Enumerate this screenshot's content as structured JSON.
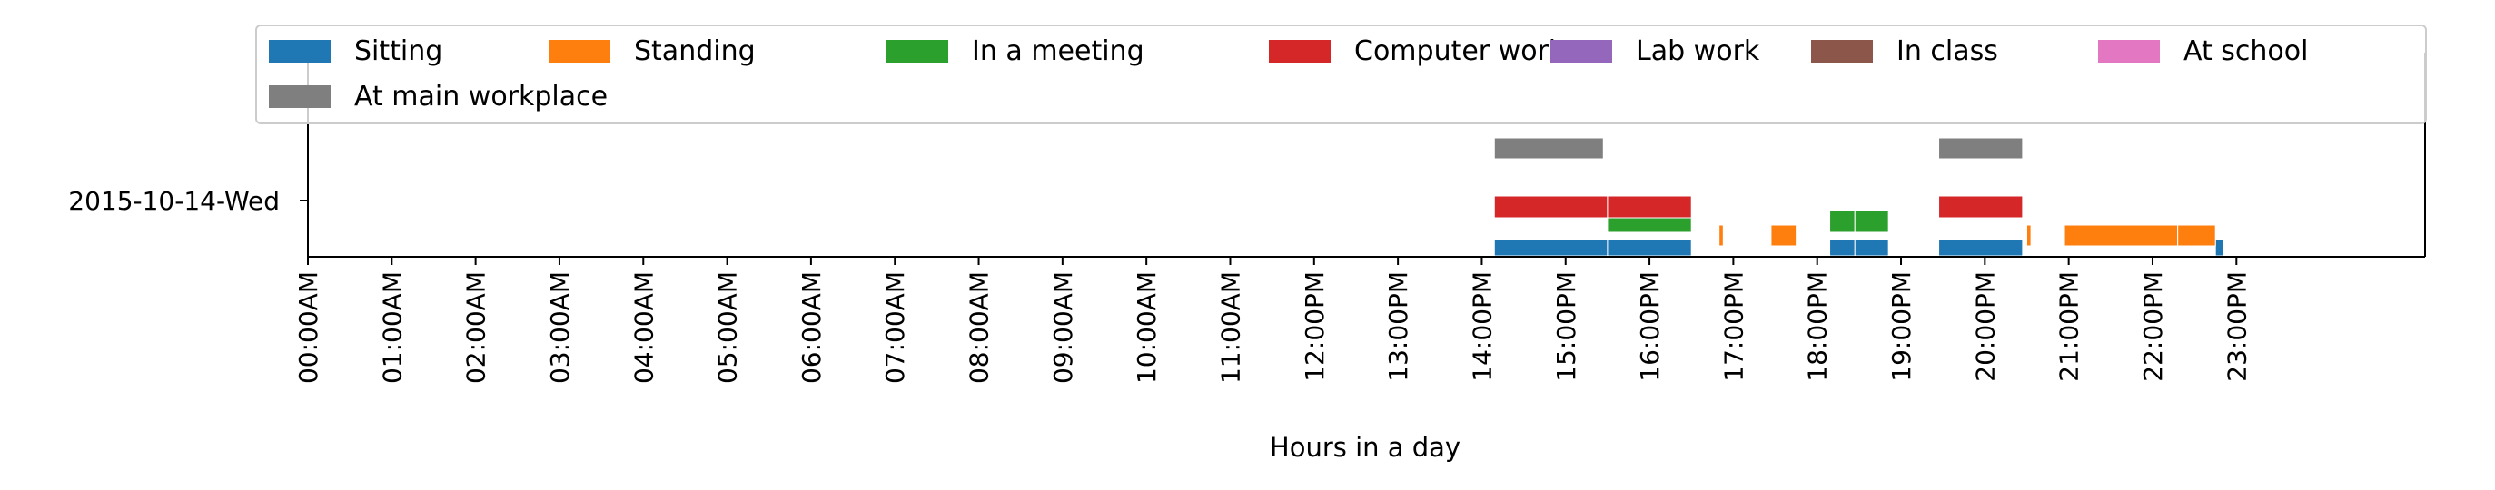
{
  "chart_data": {
    "type": "timeline",
    "xlabel": "Hours in a day",
    "xlim": [
      0,
      24
    ],
    "day_label": "2015-10-14-Wed",
    "x_tick_labels": [
      "00:00AM",
      "01:00AM",
      "02:00AM",
      "03:00AM",
      "04:00AM",
      "05:00AM",
      "06:00AM",
      "07:00AM",
      "08:00AM",
      "09:00AM",
      "10:00AM",
      "11:00AM",
      "12:00PM",
      "13:00PM",
      "14:00PM",
      "15:00PM",
      "16:00PM",
      "17:00PM",
      "18:00PM",
      "19:00PM",
      "20:00PM",
      "21:00PM",
      "22:00PM",
      "23:00PM"
    ],
    "legend_position": "top",
    "series": [
      {
        "name": "Sitting",
        "color": "#1f77b4",
        "intervals": [
          [
            14.15,
            15.5
          ],
          [
            15.5,
            16.5
          ],
          [
            18.15,
            18.45
          ],
          [
            18.45,
            18.85
          ],
          [
            19.45,
            20.45
          ],
          [
            22.75,
            22.85
          ]
        ]
      },
      {
        "name": "Standing",
        "color": "#ff7f0e",
        "intervals": [
          [
            16.83,
            16.88
          ],
          [
            17.45,
            17.75
          ],
          [
            20.5,
            20.55
          ],
          [
            20.95,
            22.3
          ],
          [
            22.3,
            22.75
          ]
        ]
      },
      {
        "name": "In a meeting",
        "color": "#2ca02c",
        "intervals": [
          [
            15.5,
            16.5
          ],
          [
            18.15,
            18.45
          ],
          [
            18.45,
            18.85
          ]
        ]
      },
      {
        "name": "Computer work",
        "color": "#d62728",
        "intervals": [
          [
            14.15,
            15.5
          ],
          [
            15.5,
            16.5
          ],
          [
            19.45,
            20.45
          ]
        ]
      },
      {
        "name": "Lab work",
        "color": "#9467bd",
        "intervals": []
      },
      {
        "name": "In class",
        "color": "#8c564b",
        "intervals": []
      },
      {
        "name": "At school",
        "color": "#e377c2",
        "intervals": []
      },
      {
        "name": "At main workplace",
        "color": "#7f7f7f",
        "intervals": [
          [
            14.15,
            15.45
          ],
          [
            19.45,
            20.45
          ]
        ]
      }
    ]
  }
}
